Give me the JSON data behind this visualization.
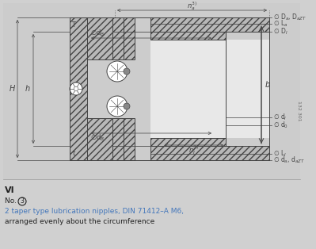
{
  "bg_color": "#d0d0d0",
  "fig_bg": "#d0d0d0",
  "draw_bg": "#d8d8d8",
  "title_text": "VI",
  "subtitle_circle": "3",
  "subtitle_line2": "2 taper type lubrication nipples, DIN 71412–A M6,",
  "subtitle_line3": "arranged evenly about the circumference",
  "image_number": "132 301",
  "line_color": "#444444",
  "hatch_color": "#b8b8b8",
  "dim_color": "#555555"
}
